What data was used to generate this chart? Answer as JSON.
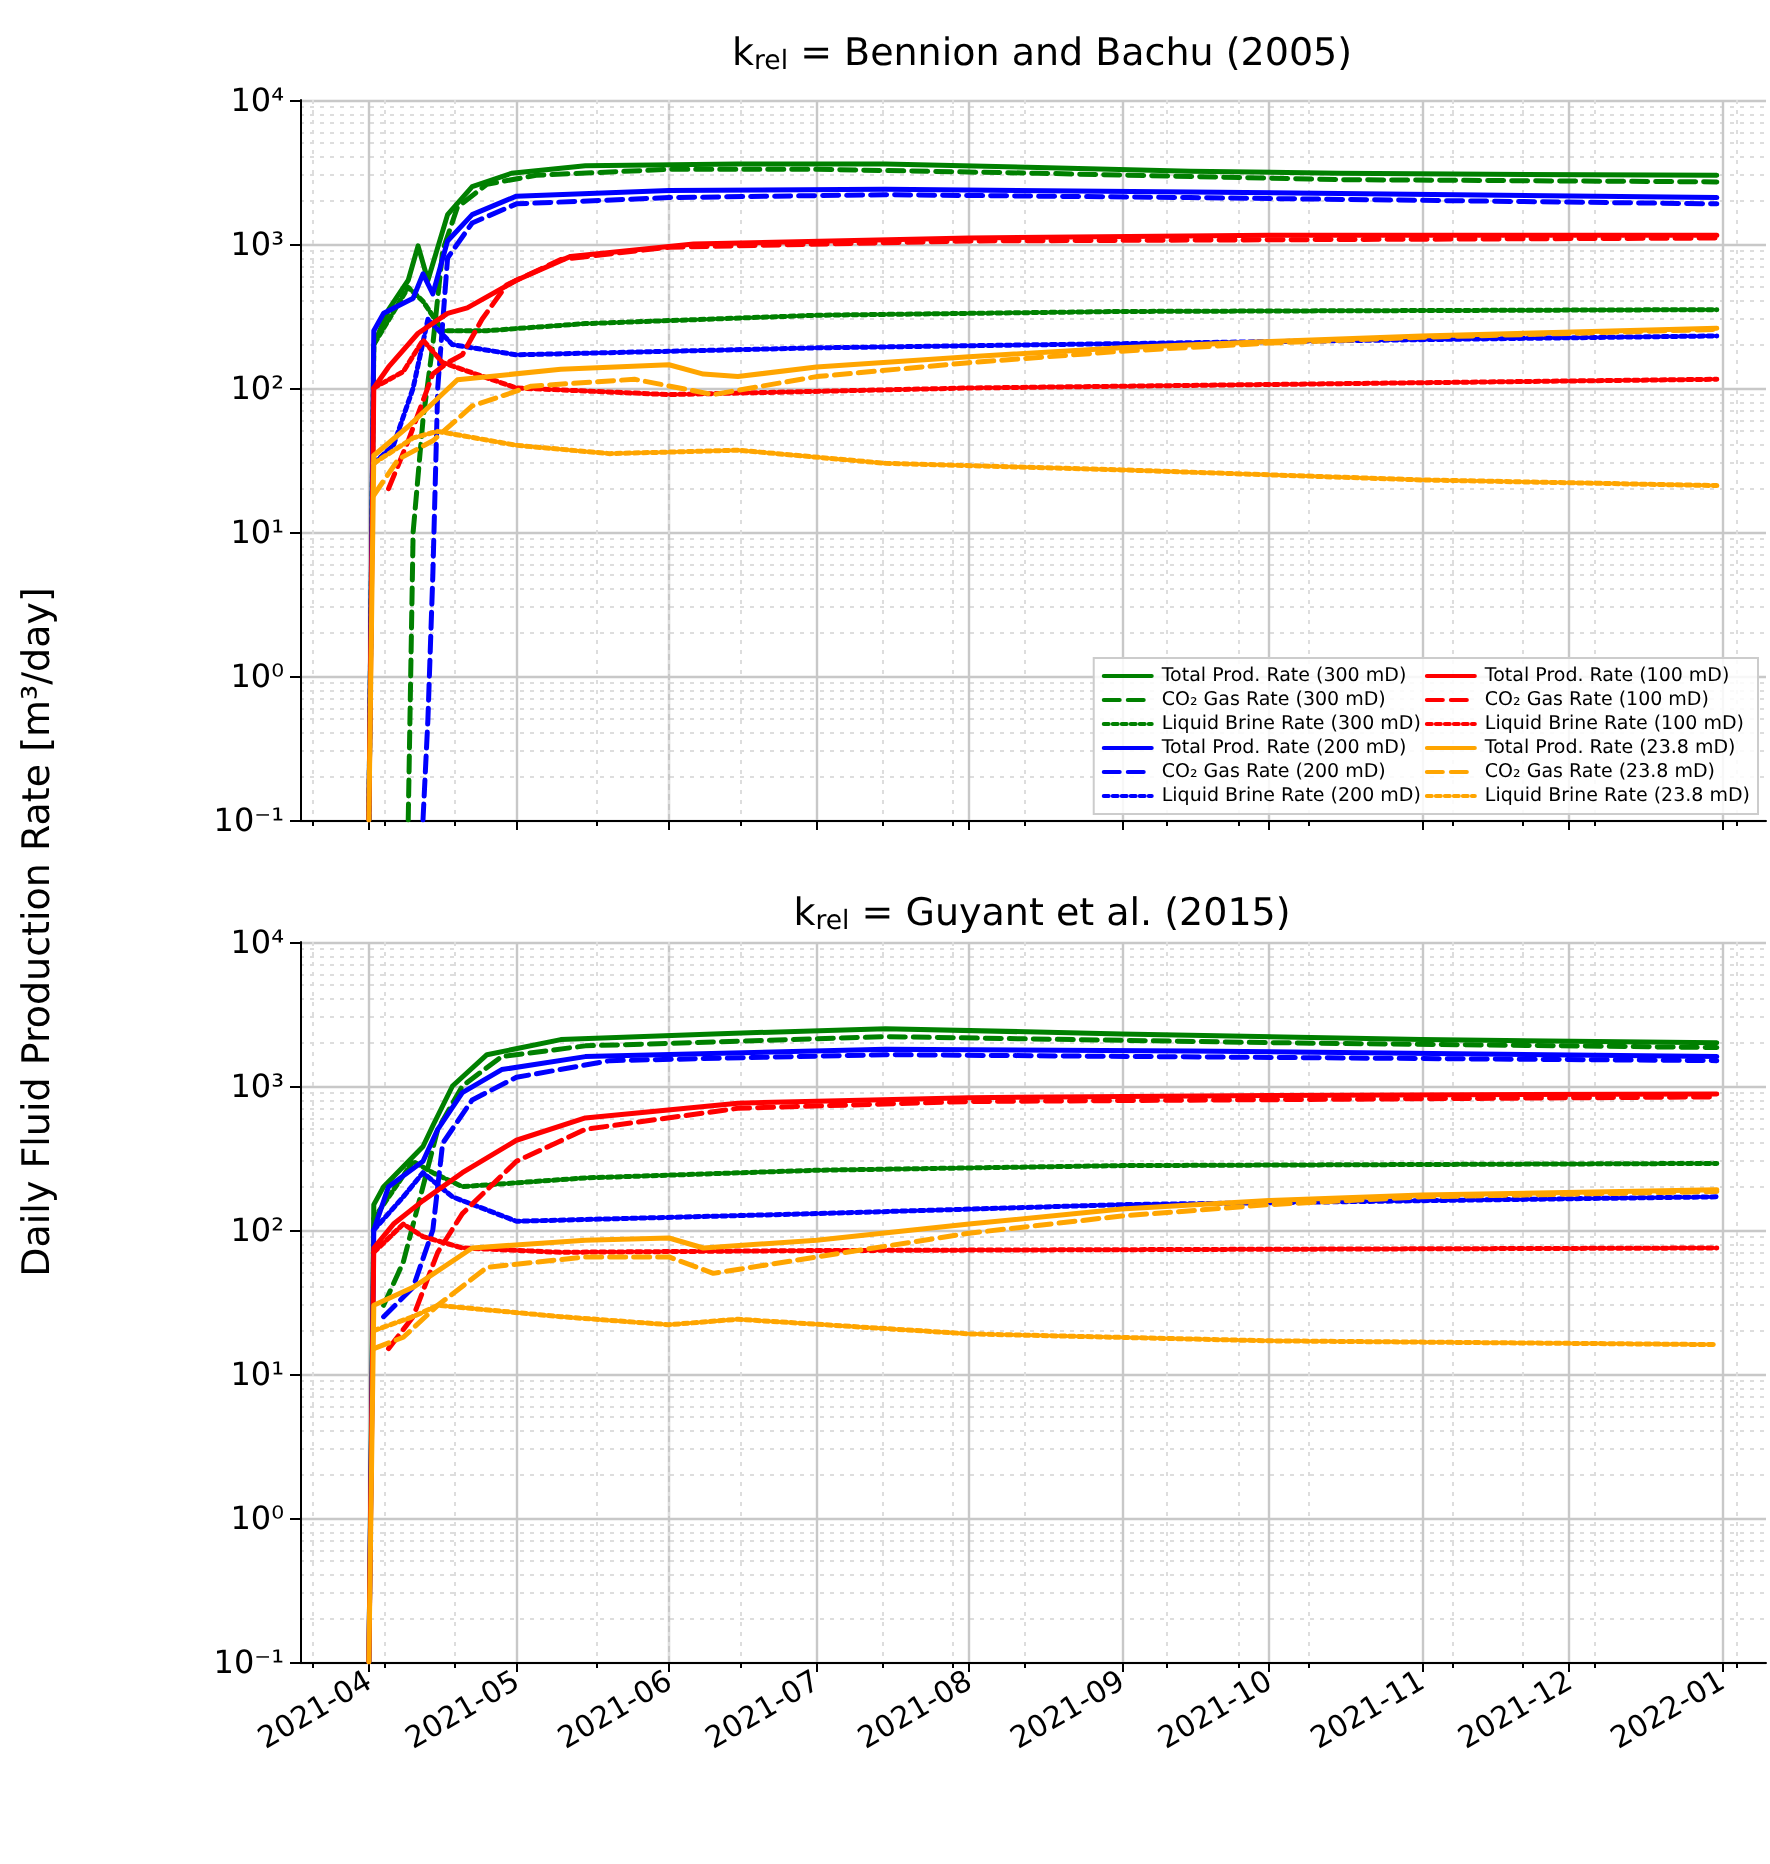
{
  "chart_data": [
    {
      "type": "line",
      "title": "k$_{rel}$ = Bennion and Bachu (2005)",
      "ylabel": "Daily Fluid Production Rate [m³/day]",
      "xlim": [
        "2021-03-18",
        "2022-01-10"
      ],
      "ylim": [
        0.1,
        10000
      ],
      "log": "y",
      "grid": true,
      "legend": "bottom right",
      "tick_labels": "y",
      "marker": "none",
      "yticks": [
        {
          "value": 0.1,
          "label": "10⁻¹"
        },
        {
          "value": 1,
          "label": "10⁰"
        },
        {
          "value": 10,
          "label": "10¹"
        },
        {
          "value": 100,
          "label": "10²"
        },
        {
          "value": 1000,
          "label": "10³"
        },
        {
          "value": 10000,
          "label": "10⁴"
        }
      ],
      "xticks": [
        "2021-04",
        "2021-05",
        "2021-06",
        "2021-07",
        "2021-08",
        "2021-09",
        "2021-10",
        "2021-11",
        "2021-12",
        "2022-01"
      ],
      "series": [
        {
          "name": "Total Prod. Rate (300 mD)",
          "color": "#008000",
          "line_style": "solid",
          "x": [
            "2021-04-01",
            "2021-04-02",
            "2021-04-05",
            "2021-04-09",
            "2021-04-11",
            "2021-04-13",
            "2021-04-17",
            "2021-04-22",
            "2021-04-30",
            "2021-05-15",
            "2021-06-15",
            "2021-07-15",
            "2021-08-15",
            "2021-09-15",
            "2021-10-15",
            "2021-11-15",
            "2021-12-31"
          ],
          "values": [
            0.1,
            200,
            350,
            560,
            970,
            560,
            1600,
            2500,
            3100,
            3500,
            3600,
            3600,
            3400,
            3200,
            3100,
            3050,
            3000
          ]
        },
        {
          "name": "CO₂ Gas Rate (300 mD)",
          "color": "#008000",
          "line_style": "dashed",
          "x": [
            "2021-04-09",
            "2021-04-10",
            "2021-04-12",
            "2021-04-14",
            "2021-04-16",
            "2021-04-19",
            "2021-04-25",
            "2021-05-05",
            "2021-06-01",
            "2021-07-01",
            "2021-08-15",
            "2021-10-15",
            "2021-12-31"
          ],
          "values": [
            0.1,
            10,
            60,
            200,
            900,
            1800,
            2600,
            3000,
            3300,
            3300,
            3100,
            2800,
            2700
          ]
        },
        {
          "name": "Liquid Brine Rate (300 mD)",
          "color": "#008000",
          "line_style": "dotted",
          "x": [
            "2021-04-01",
            "2021-04-02",
            "2021-04-09",
            "2021-04-12",
            "2021-04-16",
            "2021-04-25",
            "2021-05-15",
            "2021-07-01",
            "2021-09-01",
            "2021-12-31"
          ],
          "values": [
            0.1,
            200,
            500,
            400,
            250,
            250,
            280,
            320,
            340,
            350
          ]
        },
        {
          "name": "Total Prod. Rate (200 mD)",
          "color": "#0000ff",
          "line_style": "solid",
          "x": [
            "2021-04-01",
            "2021-04-02",
            "2021-04-04",
            "2021-04-10",
            "2021-04-12",
            "2021-04-14",
            "2021-04-17",
            "2021-04-22",
            "2021-05-01",
            "2021-06-01",
            "2021-07-15",
            "2021-09-15",
            "2021-12-31"
          ],
          "values": [
            0.1,
            250,
            330,
            420,
            620,
            450,
            1050,
            1600,
            2150,
            2350,
            2400,
            2300,
            2100
          ]
        },
        {
          "name": "CO₂ Gas Rate (200 mD)",
          "color": "#0000ff",
          "line_style": "dashed",
          "x": [
            "2021-04-12",
            "2021-04-13",
            "2021-04-14",
            "2021-04-15",
            "2021-04-17",
            "2021-04-22",
            "2021-05-01",
            "2021-06-01",
            "2021-07-15",
            "2021-09-15",
            "2021-12-31"
          ],
          "values": [
            0.1,
            0.5,
            5,
            100,
            800,
            1400,
            1900,
            2100,
            2200,
            2100,
            1900
          ]
        },
        {
          "name": "Liquid Brine Rate (200 mD)",
          "color": "#0000ff",
          "line_style": "dotted",
          "x": [
            "2021-04-02",
            "2021-04-06",
            "2021-04-10",
            "2021-04-13",
            "2021-04-18",
            "2021-05-01",
            "2021-07-01",
            "2021-10-01",
            "2021-12-31"
          ],
          "values": [
            30,
            40,
            100,
            300,
            200,
            170,
            190,
            210,
            230
          ]
        },
        {
          "name": "Total Prod. Rate (100 mD)",
          "color": "#ff0000",
          "line_style": "solid",
          "x": [
            "2021-04-01",
            "2021-04-02",
            "2021-04-05",
            "2021-04-11",
            "2021-04-17",
            "2021-04-21",
            "2021-05-01",
            "2021-05-12",
            "2021-06-06",
            "2021-08-01",
            "2021-10-01",
            "2021-12-31"
          ],
          "values": [
            0.1,
            100,
            140,
            240,
            330,
            360,
            560,
            820,
            1000,
            1100,
            1150,
            1150
          ]
        },
        {
          "name": "CO₂ Gas Rate (100 mD)",
          "color": "#ff0000",
          "line_style": "dashed",
          "x": [
            "2021-04-05",
            "2021-04-09",
            "2021-04-14",
            "2021-04-17",
            "2021-04-20",
            "2021-04-24",
            "2021-04-29",
            "2021-05-10",
            "2021-06-01",
            "2021-08-01",
            "2021-12-31"
          ],
          "values": [
            20,
            43,
            125,
            150,
            170,
            300,
            520,
            780,
            950,
            1050,
            1100
          ]
        },
        {
          "name": "Liquid Brine Rate (100 mD)",
          "color": "#ff0000",
          "line_style": "dotted",
          "x": [
            "2021-04-02",
            "2021-04-08",
            "2021-04-12",
            "2021-04-16",
            "2021-05-01",
            "2021-06-01",
            "2021-08-01",
            "2021-12-31"
          ],
          "values": [
            100,
            130,
            215,
            150,
            100,
            90,
            100,
            115
          ]
        },
        {
          "name": "Total Prod. Rate (23.8 mD)",
          "color": "#ffa500",
          "line_style": "solid",
          "x": [
            "2021-04-01",
            "2021-04-02",
            "2021-04-09",
            "2021-04-19",
            "2021-05-10",
            "2021-06-01",
            "2021-06-08",
            "2021-06-15",
            "2021-07-01",
            "2021-08-01",
            "2021-09-01",
            "2021-10-01",
            "2021-11-01",
            "2021-12-31"
          ],
          "values": [
            0.1,
            34,
            54,
            114,
            135,
            145,
            125,
            120,
            140,
            165,
            190,
            210,
            230,
            260
          ]
        },
        {
          "name": "CO₂ Gas Rate (23.8 mD)",
          "color": "#ffa500",
          "line_style": "dashed",
          "x": [
            "2021-04-02",
            "2021-04-07",
            "2021-04-14",
            "2021-04-22",
            "2021-05-04",
            "2021-05-25",
            "2021-06-10",
            "2021-07-01",
            "2021-08-01",
            "2021-09-01",
            "2021-10-01",
            "2021-11-01",
            "2021-12-31"
          ],
          "values": [
            18,
            32,
            43,
            75,
            103,
            115,
            90,
            120,
            150,
            180,
            205,
            225,
            255
          ]
        },
        {
          "name": "Liquid Brine Rate (23.8 mD)",
          "color": "#ffa500",
          "line_style": "dotted",
          "x": [
            "2021-04-02",
            "2021-04-10",
            "2021-04-15",
            "2021-05-01",
            "2021-05-20",
            "2021-06-15",
            "2021-07-15",
            "2021-09-01",
            "2021-11-01",
            "2021-12-31"
          ],
          "values": [
            30,
            45,
            50,
            40,
            35,
            37,
            30,
            27,
            23,
            21
          ]
        }
      ]
    },
    {
      "type": "line",
      "title": "k$_{rel}$ = Guyant et al. (2015)",
      "xlim": [
        "2021-03-18",
        "2022-01-10"
      ],
      "ylim": [
        0.1,
        10000
      ],
      "log": "y",
      "grid": true,
      "marker": "none",
      "yticks": [
        {
          "value": 0.1,
          "label": "10⁻¹"
        },
        {
          "value": 1,
          "label": "10⁰"
        },
        {
          "value": 10,
          "label": "10¹"
        },
        {
          "value": 100,
          "label": "10²"
        },
        {
          "value": 1000,
          "label": "10³"
        },
        {
          "value": 10000,
          "label": "10⁴"
        }
      ],
      "xticks": [
        "2021-04",
        "2021-05",
        "2021-06",
        "2021-07",
        "2021-08",
        "2021-09",
        "2021-10",
        "2021-11",
        "2021-12",
        "2022-01"
      ],
      "series": [
        {
          "color": "#008000",
          "line_style": "solid",
          "x": [
            "2021-04-01",
            "2021-04-02",
            "2021-04-04",
            "2021-04-12",
            "2021-04-14",
            "2021-04-18",
            "2021-04-25",
            "2021-05-10",
            "2021-06-10",
            "2021-07-15",
            "2021-09-01",
            "2021-11-01",
            "2021-12-31"
          ],
          "values": [
            0.1,
            150,
            200,
            380,
            530,
            1000,
            1650,
            2100,
            2300,
            2500,
            2300,
            2100,
            2000
          ]
        },
        {
          "color": "#008000",
          "line_style": "dashed",
          "x": [
            "2021-04-04",
            "2021-04-08",
            "2021-04-12",
            "2021-04-15",
            "2021-04-20",
            "2021-04-28",
            "2021-05-15",
            "2021-07-15",
            "2021-10-01",
            "2021-12-31"
          ],
          "values": [
            30,
            60,
            200,
            500,
            1000,
            1600,
            1900,
            2200,
            2000,
            1850
          ]
        },
        {
          "color": "#008000",
          "line_style": "dotted",
          "x": [
            "2021-04-02",
            "2021-04-10",
            "2021-04-14",
            "2021-04-20",
            "2021-05-15",
            "2021-07-01",
            "2021-09-01",
            "2021-12-31"
          ],
          "values": [
            120,
            300,
            250,
            200,
            230,
            260,
            280,
            290
          ]
        },
        {
          "color": "#0000ff",
          "line_style": "solid",
          "x": [
            "2021-04-01",
            "2021-04-02",
            "2021-04-05",
            "2021-04-12",
            "2021-04-15",
            "2021-04-20",
            "2021-04-28",
            "2021-05-15",
            "2021-07-15",
            "2021-09-15",
            "2021-12-31"
          ],
          "values": [
            0.1,
            100,
            200,
            300,
            500,
            900,
            1300,
            1600,
            1800,
            1750,
            1600
          ]
        },
        {
          "color": "#0000ff",
          "line_style": "dashed",
          "x": [
            "2021-04-04",
            "2021-04-10",
            "2021-04-14",
            "2021-04-16",
            "2021-04-22",
            "2021-05-01",
            "2021-05-20",
            "2021-07-15",
            "2021-12-31"
          ],
          "values": [
            25,
            40,
            100,
            400,
            800,
            1150,
            1500,
            1650,
            1500
          ]
        },
        {
          "color": "#0000ff",
          "line_style": "dotted",
          "x": [
            "2021-04-02",
            "2021-04-08",
            "2021-04-12",
            "2021-04-18",
            "2021-05-01",
            "2021-07-01",
            "2021-09-01",
            "2021-12-31"
          ],
          "values": [
            100,
            170,
            250,
            170,
            115,
            130,
            150,
            170
          ]
        },
        {
          "color": "#ff0000",
          "line_style": "solid",
          "x": [
            "2021-04-01",
            "2021-04-02",
            "2021-04-06",
            "2021-04-12",
            "2021-04-20",
            "2021-05-01",
            "2021-05-15",
            "2021-06-15",
            "2021-08-01",
            "2021-10-01",
            "2021-12-31"
          ],
          "values": [
            0.1,
            75,
            110,
            160,
            250,
            420,
            600,
            760,
            830,
            860,
            880
          ]
        },
        {
          "color": "#ff0000",
          "line_style": "dashed",
          "x": [
            "2021-04-05",
            "2021-04-10",
            "2021-04-15",
            "2021-04-20",
            "2021-05-01",
            "2021-05-15",
            "2021-06-15",
            "2021-08-01",
            "2021-12-31"
          ],
          "values": [
            15,
            25,
            70,
            130,
            300,
            500,
            700,
            780,
            840
          ]
        },
        {
          "color": "#ff0000",
          "line_style": "dotted",
          "x": [
            "2021-04-02",
            "2021-04-08",
            "2021-04-12",
            "2021-04-20",
            "2021-05-10",
            "2021-07-01",
            "2021-12-31"
          ],
          "values": [
            70,
            110,
            90,
            75,
            70,
            72,
            75
          ]
        },
        {
          "color": "#ffa500",
          "line_style": "solid",
          "x": [
            "2021-04-01",
            "2021-04-02",
            "2021-04-10",
            "2021-04-22",
            "2021-05-15",
            "2021-06-01",
            "2021-06-08",
            "2021-07-01",
            "2021-08-01",
            "2021-09-01",
            "2021-10-01",
            "2021-11-01",
            "2021-12-31"
          ],
          "values": [
            0.1,
            30,
            40,
            75,
            85,
            88,
            75,
            85,
            110,
            140,
            160,
            175,
            190
          ]
        },
        {
          "color": "#ffa500",
          "line_style": "dashed",
          "x": [
            "2021-04-02",
            "2021-04-08",
            "2021-04-15",
            "2021-04-25",
            "2021-05-15",
            "2021-06-01",
            "2021-06-10",
            "2021-07-01",
            "2021-08-01",
            "2021-09-01",
            "2021-10-01",
            "2021-11-01",
            "2021-12-31"
          ],
          "values": [
            15,
            18,
            30,
            55,
            65,
            65,
            50,
            65,
            95,
            125,
            150,
            170,
            185
          ]
        },
        {
          "color": "#ffa500",
          "line_style": "dotted",
          "x": [
            "2021-04-02",
            "2021-04-10",
            "2021-04-15",
            "2021-05-10",
            "2021-06-01",
            "2021-06-15",
            "2021-08-01",
            "2021-10-01",
            "2021-12-31"
          ],
          "values": [
            20,
            25,
            30,
            25,
            22,
            24,
            19,
            17,
            16
          ]
        }
      ]
    }
  ]
}
